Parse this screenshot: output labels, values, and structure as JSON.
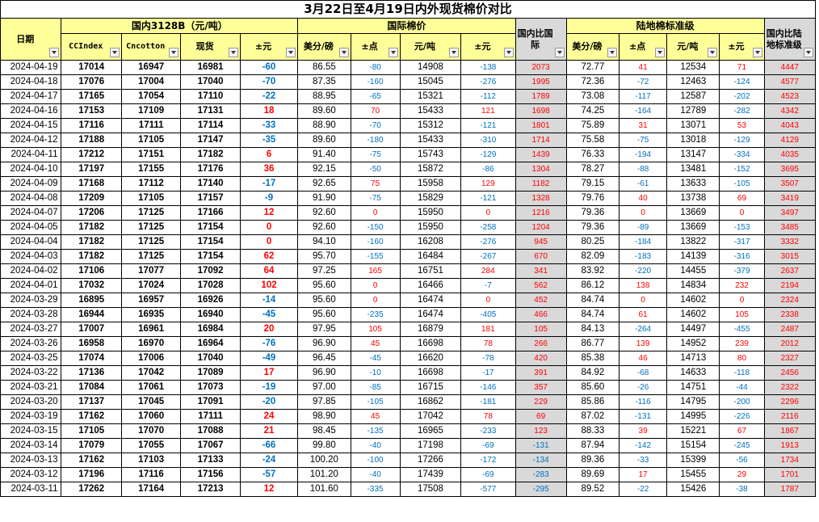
{
  "title": "3月22日至4月19日内外现货棉价对比",
  "groups": {
    "domestic": "国内3128B（元/吨）",
    "intl": "国际棉价",
    "land": "陆地棉标准级"
  },
  "headers": {
    "date": "日期",
    "ccindex": "CCIndex",
    "cncotton": "Cncotton",
    "spot": "现货",
    "pm1": "±元",
    "usd_lb": "美分/磅",
    "pm_pts": "±点",
    "yuan_ton": "元/吨",
    "pm2": "±元",
    "dom_vs_intl": "国内比国际",
    "land_usd_lb": "美分/磅",
    "land_pm_pts": "±点",
    "land_yuan_ton": "元/吨",
    "land_pm": "±元",
    "dom_vs_land": "国内比陆地标准级"
  },
  "colors": {
    "header_yellow": "#ffff99",
    "gray": "#d9d9d9",
    "positive": "#ff0000",
    "negative": "#0070c0"
  },
  "rows": [
    [
      "2024-04-19",
      "17014",
      "16947",
      "16981",
      "-60",
      "86.55",
      "-80",
      "14908",
      "-138",
      "2073",
      "72.77",
      "41",
      "12534",
      "71",
      "4447"
    ],
    [
      "2024-04-18",
      "17076",
      "17004",
      "17040",
      "-70",
      "87.35",
      "-160",
      "15045",
      "-276",
      "1995",
      "72.36",
      "-72",
      "12463",
      "-124",
      "4577"
    ],
    [
      "2024-04-17",
      "17165",
      "17054",
      "17110",
      "-22",
      "88.95",
      "-65",
      "15321",
      "-112",
      "1789",
      "73.08",
      "-117",
      "12587",
      "-202",
      "4523"
    ],
    [
      "2024-04-16",
      "17153",
      "17109",
      "17131",
      "18",
      "89.60",
      "70",
      "15433",
      "121",
      "1698",
      "74.25",
      "-164",
      "12789",
      "-282",
      "4342"
    ],
    [
      "2024-04-15",
      "17116",
      "17111",
      "17114",
      "-33",
      "88.90",
      "-70",
      "15312",
      "-121",
      "1801",
      "75.89",
      "31",
      "13071",
      "53",
      "4043"
    ],
    [
      "2024-04-12",
      "17188",
      "17105",
      "17147",
      "-35",
      "89.60",
      "-180",
      "15433",
      "-310",
      "1714",
      "75.58",
      "-75",
      "13018",
      "-129",
      "4129"
    ],
    [
      "2024-04-11",
      "17212",
      "17151",
      "17182",
      "6",
      "91.40",
      "-75",
      "15743",
      "-129",
      "1439",
      "76.33",
      "-194",
      "13147",
      "-334",
      "4035"
    ],
    [
      "2024-04-10",
      "17197",
      "17155",
      "17176",
      "36",
      "92.15",
      "-50",
      "15872",
      "-86",
      "1304",
      "78.27",
      "-88",
      "13481",
      "-152",
      "3695"
    ],
    [
      "2024-04-09",
      "17168",
      "17112",
      "17140",
      "-17",
      "92.65",
      "75",
      "15958",
      "129",
      "1182",
      "79.15",
      "-61",
      "13633",
      "-105",
      "3507"
    ],
    [
      "2024-04-08",
      "17209",
      "17105",
      "17157",
      "-9",
      "91.90",
      "-75",
      "15829",
      "-121",
      "1328",
      "79.76",
      "40",
      "13738",
      "69",
      "3419"
    ],
    [
      "2024-04-07",
      "17206",
      "17125",
      "17166",
      "12",
      "92.60",
      "0",
      "15950",
      "0",
      "1216",
      "79.36",
      "0",
      "13669",
      "0",
      "3497"
    ],
    [
      "2024-04-05",
      "17182",
      "17125",
      "17154",
      "0",
      "92.60",
      "-150",
      "15950",
      "-258",
      "1204",
      "79.36",
      "-89",
      "13669",
      "-153",
      "3485"
    ],
    [
      "2024-04-04",
      "17182",
      "17125",
      "17154",
      "0",
      "94.10",
      "-160",
      "16208",
      "-276",
      "945",
      "80.25",
      "-184",
      "13822",
      "-317",
      "3332"
    ],
    [
      "2024-04-03",
      "17182",
      "17125",
      "17154",
      "62",
      "95.70",
      "-155",
      "16484",
      "-267",
      "670",
      "82.09",
      "-183",
      "14139",
      "-316",
      "3015"
    ],
    [
      "2024-04-02",
      "17106",
      "17077",
      "17092",
      "64",
      "97.25",
      "165",
      "16751",
      "284",
      "341",
      "83.92",
      "-220",
      "14455",
      "-379",
      "2637"
    ],
    [
      "2024-04-01",
      "17032",
      "17024",
      "17028",
      "102",
      "95.60",
      "0",
      "16466",
      "-7",
      "562",
      "86.12",
      "138",
      "14834",
      "232",
      "2194"
    ],
    [
      "2024-03-29",
      "16895",
      "16957",
      "16926",
      "-14",
      "95.60",
      "0",
      "16474",
      "0",
      "452",
      "84.74",
      "0",
      "14602",
      "0",
      "2324"
    ],
    [
      "2024-03-28",
      "16944",
      "16935",
      "16940",
      "-45",
      "95.60",
      "-235",
      "16474",
      "-405",
      "466",
      "84.74",
      "61",
      "14602",
      "105",
      "2338"
    ],
    [
      "2024-03-27",
      "17007",
      "16961",
      "16984",
      "20",
      "97.95",
      "105",
      "16879",
      "181",
      "105",
      "84.13",
      "-264",
      "14497",
      "-455",
      "2487"
    ],
    [
      "2024-03-26",
      "16958",
      "16970",
      "16964",
      "-76",
      "96.90",
      "45",
      "16698",
      "78",
      "266",
      "86.77",
      "139",
      "14952",
      "239",
      "2012"
    ],
    [
      "2024-03-25",
      "17074",
      "17006",
      "17040",
      "-49",
      "96.45",
      "-45",
      "16620",
      "-78",
      "420",
      "85.38",
      "46",
      "14713",
      "80",
      "2327"
    ],
    [
      "2024-03-22",
      "17136",
      "17042",
      "17089",
      "17",
      "96.90",
      "-10",
      "16698",
      "-17",
      "391",
      "84.92",
      "-68",
      "14633",
      "-118",
      "2456"
    ],
    [
      "2024-03-21",
      "17084",
      "17061",
      "17073",
      "-19",
      "97.00",
      "-85",
      "16715",
      "-146",
      "357",
      "85.60",
      "-26",
      "14751",
      "-44",
      "2322"
    ],
    [
      "2024-03-20",
      "17137",
      "17045",
      "17091",
      "-20",
      "97.85",
      "-105",
      "16862",
      "-181",
      "229",
      "85.86",
      "-116",
      "14795",
      "-200",
      "2296"
    ],
    [
      "2024-03-19",
      "17162",
      "17060",
      "17111",
      "24",
      "98.90",
      "45",
      "17042",
      "78",
      "69",
      "87.02",
      "-131",
      "14995",
      "-226",
      "2116"
    ],
    [
      "2024-03-15",
      "17105",
      "17070",
      "17088",
      "21",
      "98.45",
      "-135",
      "16965",
      "-233",
      "123",
      "88.33",
      "39",
      "15221",
      "67",
      "1867"
    ],
    [
      "2024-03-14",
      "17079",
      "17055",
      "17067",
      "-66",
      "99.80",
      "-40",
      "17198",
      "-69",
      "-131",
      "87.94",
      "-142",
      "15154",
      "-245",
      "1913"
    ],
    [
      "2024-03-13",
      "17162",
      "17103",
      "17133",
      "-24",
      "100.20",
      "-100",
      "17266",
      "-172",
      "-134",
      "89.36",
      "-33",
      "15399",
      "-56",
      "1734"
    ],
    [
      "2024-03-12",
      "17196",
      "17116",
      "17156",
      "-57",
      "101.20",
      "-40",
      "17439",
      "-69",
      "-283",
      "89.69",
      "17",
      "15455",
      "29",
      "1701"
    ],
    [
      "2024-03-11",
      "17262",
      "17164",
      "17213",
      "12",
      "101.60",
      "-335",
      "17508",
      "-577",
      "-295",
      "89.52",
      "-22",
      "15426",
      "-38",
      "1787"
    ]
  ]
}
